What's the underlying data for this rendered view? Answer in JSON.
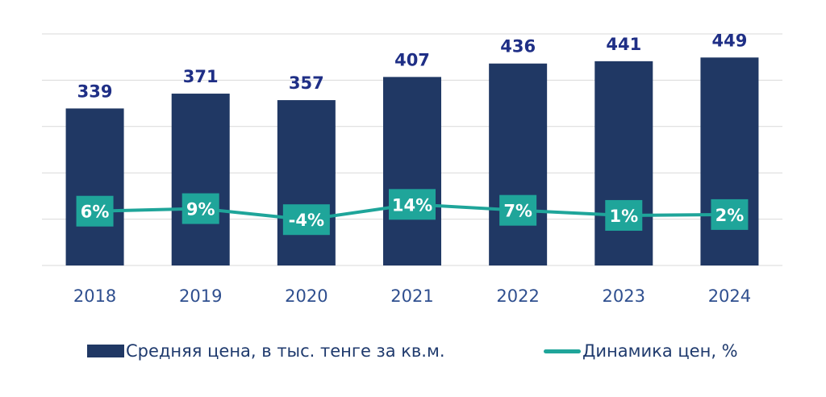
{
  "colors": {
    "bar": "#203864",
    "line": "#1fa59a",
    "label_box": "#1fa59a",
    "bar_label": "#1f2f86",
    "axis_text": "#2f4f8f",
    "grid": "#d9d9d9"
  },
  "chart_data": {
    "type": "bar",
    "categories": [
      "2018",
      "2019",
      "2020",
      "2021",
      "2022",
      "2023",
      "2024"
    ],
    "ylim": [
      0,
      500
    ],
    "grid": true,
    "legend_placement": "bottom",
    "series": [
      {
        "name": "Средняя цена, в тыс. тенге за кв.м.",
        "kind": "bar",
        "values": [
          339,
          371,
          357,
          407,
          436,
          441,
          449
        ],
        "labels": [
          "339",
          "371",
          "357",
          "407",
          "436",
          "441",
          "449"
        ]
      },
      {
        "name": "Динамика цен, %",
        "kind": "line",
        "values": [
          6,
          9,
          -4,
          14,
          7,
          1,
          2
        ],
        "labels": [
          "6%",
          "9%",
          "-4%",
          "14%",
          "7%",
          "1%",
          "2%"
        ]
      }
    ]
  },
  "legend": {
    "bar_label": "Средняя цена, в тыс. тенге за кв.м.",
    "line_label": "Динамика цен, %"
  }
}
